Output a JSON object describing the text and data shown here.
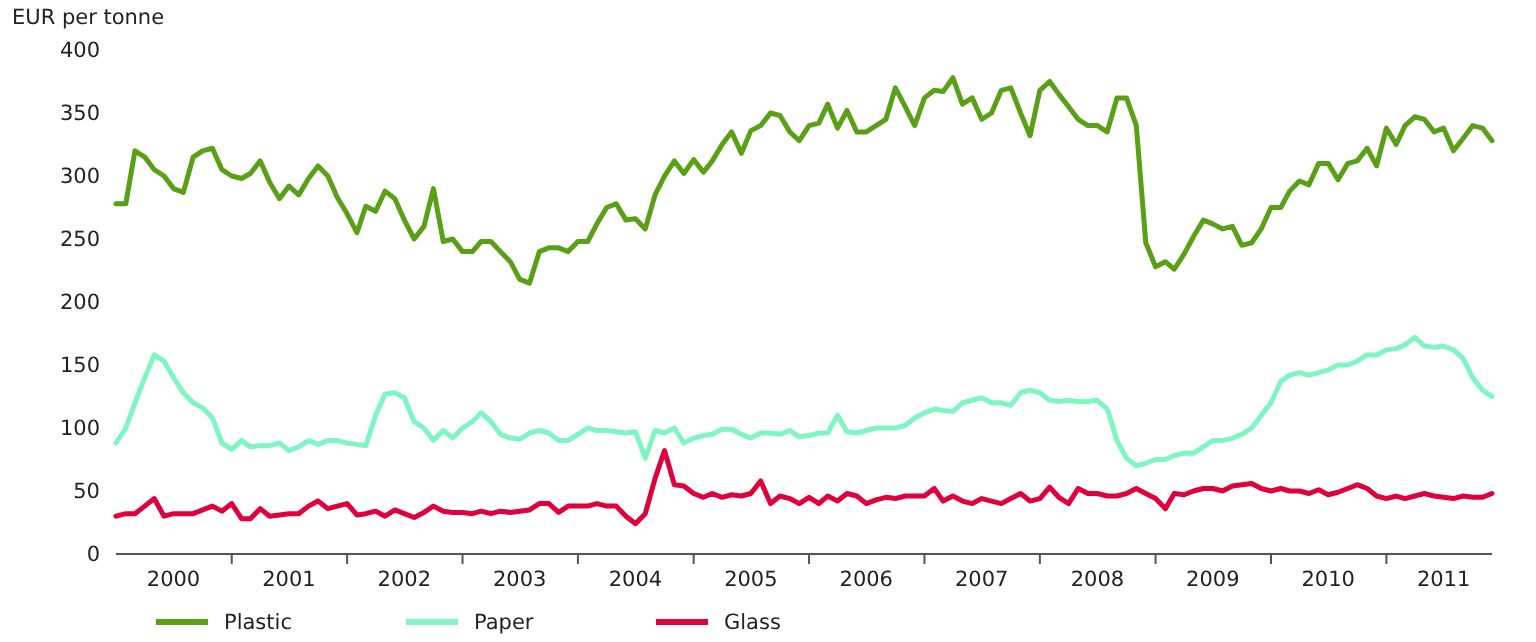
{
  "chart_data": {
    "type": "line",
    "ylabel": "EUR per tonne",
    "ylim": [
      0,
      400
    ],
    "yticks": [
      0,
      50,
      100,
      150,
      200,
      250,
      300,
      350,
      400
    ],
    "xlim": [
      "2000-01",
      "2011-12"
    ],
    "xticks": [
      {
        "value": "2000-07",
        "label": "2000"
      },
      {
        "value": "2001-01",
        "label": null
      },
      {
        "value": "2001-07",
        "label": "2001"
      },
      {
        "value": "2002-01",
        "label": null
      },
      {
        "value": "2002-07",
        "label": "2002"
      },
      {
        "value": "2003-01",
        "label": null
      },
      {
        "value": "2003-07",
        "label": "2003"
      },
      {
        "value": "2004-01",
        "label": null
      },
      {
        "value": "2004-07",
        "label": "2004"
      },
      {
        "value": "2005-01",
        "label": null
      },
      {
        "value": "2005-07",
        "label": "2005"
      },
      {
        "value": "2006-01",
        "label": null
      },
      {
        "value": "2006-07",
        "label": "2006"
      },
      {
        "value": "2007-01",
        "label": null
      },
      {
        "value": "2007-07",
        "label": "2007"
      },
      {
        "value": "2008-01",
        "label": null
      },
      {
        "value": "2008-07",
        "label": "2008"
      },
      {
        "value": "2009-01",
        "label": null
      },
      {
        "value": "2009-07",
        "label": "2009"
      },
      {
        "value": "2010-01",
        "label": null
      },
      {
        "value": "2010-07",
        "label": "2010"
      },
      {
        "value": "2011-01",
        "label": null
      },
      {
        "value": "2011-07",
        "label": "2011"
      }
    ],
    "x": [
      "2000-01",
      "2000-02",
      "2000-03",
      "2000-04",
      "2000-05",
      "2000-06",
      "2000-07",
      "2000-08",
      "2000-09",
      "2000-10",
      "2000-11",
      "2000-12",
      "2001-01",
      "2001-02",
      "2001-03",
      "2001-04",
      "2001-05",
      "2001-06",
      "2001-07",
      "2001-08",
      "2001-09",
      "2001-10",
      "2001-11",
      "2001-12",
      "2002-01",
      "2002-02",
      "2002-03",
      "2002-04",
      "2002-05",
      "2002-06",
      "2002-07",
      "2002-08",
      "2002-09",
      "2002-10",
      "2002-11",
      "2002-12",
      "2003-01",
      "2003-02",
      "2003-03",
      "2003-04",
      "2003-05",
      "2003-06",
      "2003-07",
      "2003-08",
      "2003-09",
      "2003-10",
      "2003-11",
      "2003-12",
      "2004-01",
      "2004-02",
      "2004-03",
      "2004-04",
      "2004-05",
      "2004-06",
      "2004-07",
      "2004-08",
      "2004-09",
      "2004-10",
      "2004-11",
      "2004-12",
      "2005-01",
      "2005-02",
      "2005-03",
      "2005-04",
      "2005-05",
      "2005-06",
      "2005-07",
      "2005-08",
      "2005-09",
      "2005-10",
      "2005-11",
      "2005-12",
      "2006-01",
      "2006-02",
      "2006-03",
      "2006-04",
      "2006-05",
      "2006-06",
      "2006-07",
      "2006-08",
      "2006-09",
      "2006-10",
      "2006-11",
      "2006-12",
      "2007-01",
      "2007-02",
      "2007-03",
      "2007-04",
      "2007-05",
      "2007-06",
      "2007-07",
      "2007-08",
      "2007-09",
      "2007-10",
      "2007-11",
      "2007-12",
      "2008-01",
      "2008-02",
      "2008-03",
      "2008-04",
      "2008-05",
      "2008-06",
      "2008-07",
      "2008-08",
      "2008-09",
      "2008-10",
      "2008-11",
      "2008-12",
      "2009-01",
      "2009-02",
      "2009-03",
      "2009-04",
      "2009-05",
      "2009-06",
      "2009-07",
      "2009-08",
      "2009-09",
      "2009-10",
      "2009-11",
      "2009-12",
      "2010-01",
      "2010-02",
      "2010-03",
      "2010-04",
      "2010-05",
      "2010-06",
      "2010-07",
      "2010-08",
      "2010-09",
      "2010-10",
      "2010-11",
      "2010-12",
      "2011-01",
      "2011-02",
      "2011-03",
      "2011-04",
      "2011-05",
      "2011-06",
      "2011-07",
      "2011-08",
      "2011-09",
      "2011-10",
      "2011-11",
      "2011-12"
    ],
    "series": [
      {
        "name": "Plastic",
        "color": "#5aa016",
        "values": [
          278,
          278,
          320,
          315,
          305,
          300,
          290,
          287,
          315,
          320,
          322,
          305,
          300,
          298,
          302,
          312,
          295,
          282,
          292,
          285,
          298,
          308,
          300,
          283,
          270,
          255,
          276,
          272,
          288,
          282,
          265,
          250,
          260,
          290,
          248,
          250,
          240,
          240,
          248,
          248,
          240,
          232,
          218,
          215,
          240,
          243,
          243,
          240,
          248,
          248,
          262,
          275,
          278,
          265,
          266,
          258,
          285,
          300,
          312,
          302,
          313,
          303,
          312,
          325,
          335,
          318,
          336,
          340,
          350,
          348,
          335,
          328,
          340,
          342,
          357,
          338,
          352,
          335,
          335,
          340,
          345,
          370,
          355,
          340,
          362,
          368,
          367,
          378,
          357,
          362,
          345,
          350,
          368,
          370,
          350,
          332,
          368,
          375,
          365,
          355,
          345,
          340,
          340,
          335,
          362,
          362,
          340,
          247,
          228,
          232,
          226,
          238,
          252,
          265,
          262,
          258,
          260,
          245,
          247,
          258,
          275,
          275,
          288,
          296,
          293,
          310,
          310,
          297,
          310,
          312,
          322,
          308,
          338,
          325,
          340,
          347,
          345,
          335,
          338,
          320,
          330,
          340,
          338,
          328
        ]
      },
      {
        "name": "Paper",
        "color": "#80f5c4",
        "values": [
          88,
          100,
          120,
          140,
          158,
          153,
          140,
          128,
          120,
          116,
          108,
          88,
          83,
          90,
          85,
          86,
          86,
          88,
          82,
          85,
          90,
          87,
          90,
          90,
          88,
          87,
          86,
          110,
          127,
          128,
          124,
          105,
          100,
          90,
          98,
          92,
          100,
          105,
          112,
          105,
          95,
          92,
          91,
          96,
          98,
          96,
          90,
          90,
          95,
          100,
          98,
          98,
          97,
          96,
          97,
          76,
          98,
          96,
          100,
          88,
          92,
          94,
          95,
          99,
          99,
          95,
          92,
          96,
          96,
          95,
          98,
          93,
          94,
          96,
          96,
          110,
          97,
          96,
          98,
          100,
          100,
          100,
          102,
          108,
          112,
          115,
          114,
          113,
          120,
          122,
          124,
          120,
          120,
          118,
          128,
          130,
          128,
          122,
          121,
          122,
          121,
          121,
          122,
          115,
          90,
          76,
          70,
          72,
          75,
          75,
          78,
          80,
          80,
          85,
          90,
          90,
          92,
          95,
          100,
          110,
          120,
          137,
          142,
          144,
          142,
          144,
          146,
          150,
          150,
          153,
          158,
          158,
          162,
          163,
          166,
          172,
          165,
          164,
          165,
          162,
          155,
          140,
          130,
          125
        ]
      },
      {
        "name": "Glass",
        "color": "#e0003c",
        "values": [
          30,
          32,
          32,
          38,
          44,
          30,
          32,
          32,
          32,
          35,
          38,
          34,
          40,
          28,
          28,
          36,
          30,
          31,
          32,
          32,
          38,
          42,
          36,
          38,
          40,
          31,
          32,
          34,
          30,
          35,
          32,
          29,
          33,
          38,
          34,
          33,
          33,
          32,
          34,
          32,
          34,
          33,
          34,
          35,
          40,
          40,
          33,
          38,
          38,
          38,
          40,
          38,
          38,
          30,
          24,
          32,
          60,
          82,
          55,
          54,
          48,
          45,
          48,
          45,
          47,
          46,
          48,
          58,
          40,
          46,
          44,
          40,
          45,
          40,
          46,
          42,
          48,
          46,
          40,
          43,
          45,
          44,
          46,
          46,
          46,
          52,
          42,
          46,
          42,
          40,
          44,
          42,
          40,
          44,
          48,
          42,
          44,
          53,
          45,
          40,
          52,
          48,
          48,
          46,
          46,
          48,
          52,
          48,
          44,
          36,
          48,
          47,
          50,
          52,
          52,
          50,
          54,
          55,
          56,
          52,
          50,
          52,
          50,
          50,
          48,
          51,
          47,
          49,
          52,
          55,
          52,
          46,
          44,
          46,
          44,
          46,
          48,
          46,
          45,
          44,
          46,
          45,
          45,
          48
        ]
      }
    ],
    "legend": "bottom",
    "grid": false
  }
}
